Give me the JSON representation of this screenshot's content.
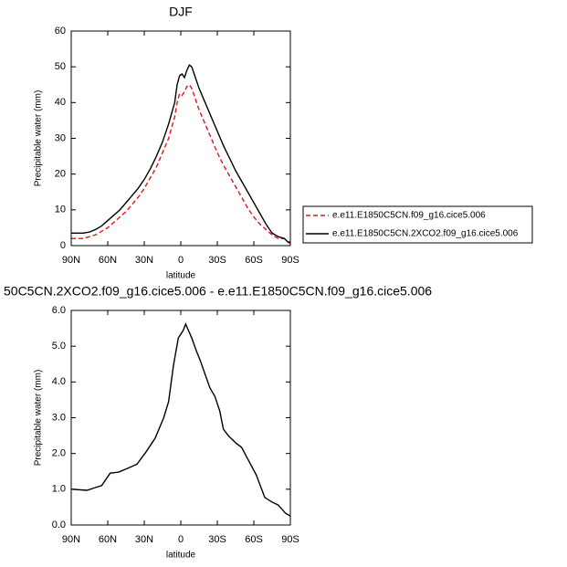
{
  "chart_data": [
    {
      "type": "line",
      "title": "DJF",
      "xlabel": "latitude",
      "ylabel": "Precipitable water (mm)",
      "x": [
        90,
        80,
        75,
        70,
        65,
        60,
        55,
        50,
        45,
        40,
        35,
        30,
        25,
        20,
        15,
        10,
        5,
        3,
        1,
        -1,
        -3,
        -5,
        -7,
        -9,
        -12,
        -15,
        -20,
        -25,
        -30,
        -35,
        -40,
        -45,
        -50,
        -55,
        -60,
        -65,
        -70,
        -75,
        -80,
        -85,
        -88,
        -90
      ],
      "series": [
        {
          "name": "e.e11.E1850C5CN.f09_g16.cice5.006",
          "color": "#e8141b",
          "dash": true,
          "values": [
            2,
            2,
            2.5,
            3,
            4,
            5,
            6.5,
            8,
            9.5,
            11.5,
            13.5,
            16,
            19,
            22,
            26,
            30,
            36,
            40,
            42.5,
            42,
            43,
            44.5,
            45,
            44,
            41,
            38,
            34,
            30,
            26,
            22.5,
            19.5,
            16.5,
            13.5,
            10.5,
            8,
            6,
            4.5,
            3,
            2,
            2,
            1,
            0.5
          ]
        },
        {
          "name": "e.e11.E1850C5CN.2XCO2.f09_g16.cice5.006",
          "color": "#000000",
          "dash": false,
          "values": [
            3.5,
            3.5,
            3.8,
            4.5,
            5.5,
            7,
            8.5,
            10,
            12,
            14,
            16,
            18.5,
            21.5,
            25,
            29,
            34,
            40,
            45,
            47.5,
            48,
            47,
            49,
            50.5,
            50,
            47,
            44,
            40,
            36,
            32,
            28,
            24.5,
            21,
            18,
            15,
            12,
            9,
            6,
            3.5,
            2.5,
            2,
            1,
            1
          ]
        }
      ],
      "xlim": [
        90,
        -90
      ],
      "xticks": [
        {
          "value": 90,
          "label": "90N"
        },
        {
          "value": 60,
          "label": "60N"
        },
        {
          "value": 30,
          "label": "30N"
        },
        0,
        {
          "value": -30,
          "label": "30S"
        },
        {
          "value": -60,
          "label": "60S"
        },
        {
          "value": -90,
          "label": "90S"
        }
      ],
      "ylim": [
        0,
        60
      ],
      "yticks": [
        0,
        10,
        20,
        30,
        40,
        50,
        60
      ],
      "legend": "right"
    },
    {
      "type": "line",
      "title": "50C5CN.2XCO2.f09_g16.cice5.006 - e.e11.E1850C5CN.f09_g16.cice5.006",
      "xlabel": "latitude",
      "ylabel": "Precipitable water (mm)",
      "x": [
        90,
        77,
        70,
        65,
        58,
        51,
        44,
        36,
        28,
        21,
        14,
        10,
        6,
        2,
        -2,
        -4,
        -9,
        -13,
        -16,
        -20,
        -24,
        -28,
        -32,
        -35,
        -39,
        -45,
        -50,
        -54,
        -62,
        -69,
        -75,
        -80,
        -86,
        -90
      ],
      "series": [
        {
          "color": "#000000",
          "dash": false,
          "values": [
            1.0,
            0.97,
            1.05,
            1.1,
            1.45,
            1.48,
            1.58,
            1.7,
            2.07,
            2.43,
            3.0,
            3.45,
            4.47,
            5.23,
            5.44,
            5.62,
            5.23,
            4.85,
            4.6,
            4.21,
            3.83,
            3.6,
            3.19,
            2.68,
            2.5,
            2.3,
            2.17,
            1.91,
            1.4,
            0.77,
            0.64,
            0.56,
            0.33,
            0.25
          ]
        }
      ],
      "xlim": [
        90,
        -90
      ],
      "xticks": [
        {
          "value": 90,
          "label": "90N"
        },
        {
          "value": 60,
          "label": "60N"
        },
        {
          "value": 30,
          "label": "30N"
        },
        0,
        {
          "value": -30,
          "label": "30S"
        },
        {
          "value": -60,
          "label": "60S"
        },
        {
          "value": -90,
          "label": "90S"
        }
      ],
      "ylim": [
        0,
        6
      ],
      "yticks": [
        {
          "value": 0,
          "label": "0.0"
        },
        {
          "value": 1,
          "label": "1.0"
        },
        {
          "value": 2,
          "label": "2.0"
        },
        {
          "value": 3,
          "label": "3.0"
        },
        {
          "value": 4,
          "label": "4.0"
        },
        {
          "value": 5,
          "label": "5.0"
        },
        {
          "value": 6,
          "label": "6.0"
        }
      ]
    }
  ]
}
